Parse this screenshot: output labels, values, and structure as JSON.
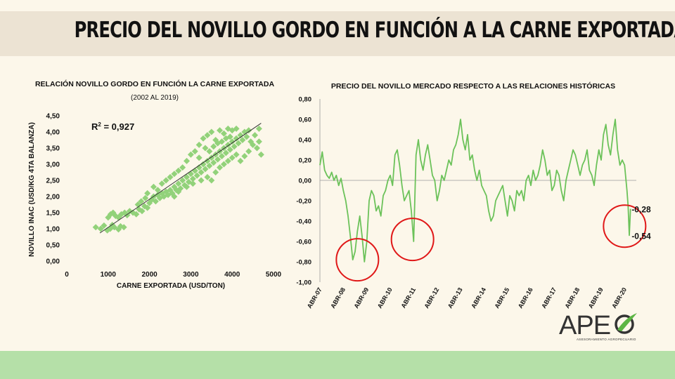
{
  "page": {
    "title": "PRECIO DEL NOVILLO GORDO EN FUNCIÓN A LA CARNE EXPORTADA"
  },
  "logo": {
    "name": "APE",
    "tagline": "ASESORAMIENTO AGROPECUARIO"
  },
  "chart_data": [
    {
      "type": "scatter",
      "title": "RELACIÓN NOVILLO GORDO EN FUNCIÓN LA CARNE EXPORTADA",
      "subtitle": "(2002 AL 2019)",
      "xlabel": "CARNE EXPORTADA (USD/TON)",
      "ylabel": "NOVILLO INAC (USD/KG 4TA BALANZA)",
      "xlim": [
        0,
        5000
      ],
      "ylim": [
        0,
        4.5
      ],
      "x_ticks": [
        0,
        1000,
        2000,
        3000,
        4000,
        5000
      ],
      "x_tick_labels": [
        "0",
        "1000",
        "2000",
        "3000",
        "4000",
        "5000"
      ],
      "y_ticks": [
        0,
        0.5,
        1,
        1.5,
        2,
        2.5,
        3,
        3.5,
        4,
        4.5
      ],
      "y_tick_labels": [
        "0,00",
        "0,50",
        "1,00",
        "1,50",
        "2,00",
        "2,50",
        "3,00",
        "3,50",
        "4,00",
        "4,50"
      ],
      "annotation": "R² = 0,927",
      "trendline": {
        "x": [
          800,
          4700
        ],
        "y": [
          0.87,
          4.27
        ]
      },
      "marker": "diamond",
      "color": "#92d27a",
      "points": [
        [
          700,
          1.05
        ],
        [
          820,
          1.0
        ],
        [
          900,
          1.1
        ],
        [
          980,
          0.95
        ],
        [
          1050,
          1.0
        ],
        [
          1100,
          1.12
        ],
        [
          1150,
          1.05
        ],
        [
          1250,
          0.98
        ],
        [
          1300,
          1.08
        ],
        [
          1380,
          1.05
        ],
        [
          1000,
          1.35
        ],
        [
          1060,
          1.45
        ],
        [
          1120,
          1.5
        ],
        [
          1180,
          1.4
        ],
        [
          1250,
          1.35
        ],
        [
          1320,
          1.45
        ],
        [
          1400,
          1.5
        ],
        [
          1460,
          1.42
        ],
        [
          1520,
          1.55
        ],
        [
          1600,
          1.5
        ],
        [
          1680,
          1.45
        ],
        [
          1750,
          1.6
        ],
        [
          1820,
          1.55
        ],
        [
          1880,
          1.7
        ],
        [
          1950,
          1.65
        ],
        [
          2000,
          1.8
        ],
        [
          1720,
          1.75
        ],
        [
          1800,
          1.85
        ],
        [
          1900,
          1.95
        ],
        [
          2050,
          1.9
        ],
        [
          2100,
          2.0
        ],
        [
          2150,
          1.85
        ],
        [
          2200,
          2.05
        ],
        [
          2250,
          1.95
        ],
        [
          2300,
          2.1
        ],
        [
          2350,
          2.0
        ],
        [
          2400,
          2.15
        ],
        [
          2450,
          2.05
        ],
        [
          2500,
          2.2
        ],
        [
          2550,
          2.1
        ],
        [
          2600,
          2.3
        ],
        [
          2650,
          2.2
        ],
        [
          2700,
          2.4
        ],
        [
          2750,
          2.25
        ],
        [
          2800,
          2.5
        ],
        [
          2850,
          2.35
        ],
        [
          2900,
          2.6
        ],
        [
          2950,
          2.45
        ],
        [
          3000,
          2.7
        ],
        [
          3050,
          2.55
        ],
        [
          3100,
          2.8
        ],
        [
          3150,
          2.65
        ],
        [
          3200,
          2.9
        ],
        [
          3250,
          2.75
        ],
        [
          3300,
          3.0
        ],
        [
          3350,
          2.85
        ],
        [
          3400,
          3.1
        ],
        [
          3450,
          2.95
        ],
        [
          3500,
          3.2
        ],
        [
          3550,
          3.05
        ],
        [
          3600,
          3.3
        ],
        [
          3650,
          3.15
        ],
        [
          3700,
          3.4
        ],
        [
          3750,
          3.25
        ],
        [
          3800,
          3.5
        ],
        [
          3850,
          3.35
        ],
        [
          3900,
          3.6
        ],
        [
          3950,
          3.45
        ],
        [
          4000,
          3.7
        ],
        [
          4050,
          3.55
        ],
        [
          4100,
          3.8
        ],
        [
          4150,
          3.65
        ],
        [
          4200,
          3.9
        ],
        [
          4250,
          3.75
        ],
        [
          4300,
          4.0
        ],
        [
          4350,
          3.85
        ],
        [
          4400,
          4.05
        ],
        [
          4450,
          3.7
        ],
        [
          4550,
          3.9
        ],
        [
          4650,
          4.1
        ],
        [
          3200,
          3.6
        ],
        [
          3300,
          3.8
        ],
        [
          3400,
          3.9
        ],
        [
          3500,
          4.0
        ],
        [
          3600,
          3.75
        ],
        [
          3700,
          4.05
        ],
        [
          3800,
          3.95
        ],
        [
          3900,
          4.1
        ],
        [
          4000,
          4.05
        ],
        [
          4100,
          4.1
        ],
        [
          3400,
          2.6
        ],
        [
          3500,
          2.5
        ],
        [
          3600,
          2.75
        ],
        [
          3700,
          2.9
        ],
        [
          3800,
          3.0
        ],
        [
          3900,
          3.1
        ],
        [
          4000,
          3.2
        ],
        [
          4100,
          3.3
        ],
        [
          4200,
          3.1
        ],
        [
          4300,
          3.25
        ],
        [
          4400,
          3.4
        ],
        [
          4500,
          3.6
        ],
        [
          4600,
          3.5
        ],
        [
          4700,
          3.3
        ],
        [
          4650,
          3.7
        ],
        [
          2800,
          2.9
        ],
        [
          2900,
          3.1
        ],
        [
          3000,
          3.3
        ],
        [
          3100,
          3.4
        ],
        [
          3200,
          3.2
        ],
        [
          2400,
          2.5
        ],
        [
          2500,
          2.6
        ],
        [
          2600,
          2.7
        ],
        [
          2700,
          2.8
        ],
        [
          2300,
          2.4
        ],
        [
          2200,
          2.2
        ],
        [
          2100,
          2.3
        ],
        [
          1950,
          2.1
        ],
        [
          2600,
          2.0
        ],
        [
          2700,
          2.15
        ],
        [
          2900,
          2.3
        ],
        [
          3050,
          2.4
        ],
        [
          3250,
          2.5
        ],
        [
          3350,
          3.5
        ],
        [
          3450,
          3.4
        ],
        [
          3550,
          3.55
        ],
        [
          3650,
          3.65
        ],
        [
          3750,
          3.7
        ],
        [
          3850,
          3.8
        ],
        [
          3950,
          3.85
        ]
      ]
    },
    {
      "type": "line",
      "title": "PRECIO DEL NOVILLO MERCADO RESPECTO A LAS RELACIONES HISTÓRICAS",
      "ylim": [
        -1.0,
        0.8
      ],
      "y_ticks": [
        -1.0,
        -0.8,
        -0.6,
        -0.4,
        -0.2,
        0.0,
        0.2,
        0.4,
        0.6,
        0.8
      ],
      "y_tick_labels": [
        "-1,00",
        "-0,80",
        "-0,60",
        "-0,40",
        "-0,20",
        "0,00",
        "0,20",
        "0,40",
        "0,60",
        "0,80"
      ],
      "categories": [
        "ABR-07",
        "ABR-08",
        "ABR-09",
        "ABR-10",
        "ABR-11",
        "ABR-12",
        "ABR-13",
        "ABR-14",
        "ABR-15",
        "ABR-16",
        "ABR-17",
        "ABR-18",
        "ABR-19",
        "ABR-20"
      ],
      "xlim": [
        2007.0,
        2020.5
      ],
      "color": "#6cc25a",
      "highlight_color": "#e01818",
      "annotations": [
        {
          "label": "-0,28",
          "x": 2020.35,
          "y": -0.28
        },
        {
          "label": "-0,54",
          "x": 2020.35,
          "y": -0.54
        }
      ],
      "highlighted_regions": [
        {
          "x": 2008.6,
          "y": -0.78
        },
        {
          "x": 2010.95,
          "y": -0.58
        },
        {
          "x": 2020.0,
          "y": -0.45
        }
      ],
      "series": [
        {
          "x": [
            2007.0,
            2007.1,
            2007.2,
            2007.3,
            2007.4,
            2007.5,
            2007.6,
            2007.7,
            2007.8,
            2007.9,
            2008.0,
            2008.1,
            2008.2,
            2008.3,
            2008.4,
            2008.5,
            2008.6,
            2008.7,
            2008.8,
            2008.9,
            2009.0,
            2009.1,
            2009.2,
            2009.3,
            2009.4,
            2009.5,
            2009.6,
            2009.7,
            2009.8,
            2009.9,
            2010.0,
            2010.1,
            2010.2,
            2010.3,
            2010.4,
            2010.5,
            2010.6,
            2010.7,
            2010.8,
            2010.9,
            2011.0,
            2011.1,
            2011.2,
            2011.3,
            2011.4,
            2011.5,
            2011.6,
            2011.7,
            2011.8,
            2011.9,
            2012.0,
            2012.1,
            2012.2,
            2012.3,
            2012.4,
            2012.5,
            2012.6,
            2012.7,
            2012.8,
            2012.9,
            2013.0,
            2013.1,
            2013.2,
            2013.3,
            2013.4,
            2013.5,
            2013.6,
            2013.7,
            2013.8,
            2013.9,
            2014.0,
            2014.1,
            2014.2,
            2014.3,
            2014.4,
            2014.5,
            2014.6,
            2014.7,
            2014.8,
            2014.9,
            2015.0,
            2015.1,
            2015.2,
            2015.3,
            2015.4,
            2015.5,
            2015.6,
            2015.7,
            2015.8,
            2015.9,
            2016.0,
            2016.1,
            2016.2,
            2016.3,
            2016.4,
            2016.5,
            2016.6,
            2016.7,
            2016.8,
            2016.9,
            2017.0,
            2017.1,
            2017.2,
            2017.3,
            2017.4,
            2017.5,
            2017.6,
            2017.7,
            2017.8,
            2017.9,
            2018.0,
            2018.1,
            2018.2,
            2018.3,
            2018.4,
            2018.5,
            2018.6,
            2018.7,
            2018.8,
            2018.9,
            2019.0,
            2019.1,
            2019.2,
            2019.3,
            2019.4,
            2019.5,
            2019.6,
            2019.7,
            2019.8,
            2019.9,
            2020.0,
            2020.1,
            2020.15,
            2020.2,
            2020.25
          ],
          "y": [
            0.15,
            0.28,
            0.1,
            0.05,
            0.02,
            0.08,
            0.0,
            0.05,
            -0.05,
            0.02,
            -0.1,
            -0.2,
            -0.35,
            -0.55,
            -0.78,
            -0.7,
            -0.5,
            -0.35,
            -0.55,
            -0.8,
            -0.6,
            -0.2,
            -0.1,
            -0.15,
            -0.3,
            -0.25,
            -0.35,
            -0.15,
            -0.1,
            0.0,
            0.05,
            -0.05,
            0.25,
            0.3,
            0.15,
            -0.05,
            -0.2,
            -0.15,
            -0.1,
            -0.3,
            -0.6,
            0.25,
            0.4,
            0.2,
            0.1,
            0.25,
            0.35,
            0.2,
            0.05,
            0.0,
            -0.2,
            -0.1,
            0.05,
            0.0,
            0.1,
            0.2,
            0.15,
            0.3,
            0.35,
            0.45,
            0.6,
            0.4,
            0.3,
            0.45,
            0.2,
            0.25,
            0.1,
            0.0,
            0.1,
            -0.05,
            -0.1,
            -0.15,
            -0.3,
            -0.4,
            -0.35,
            -0.2,
            -0.15,
            -0.1,
            -0.05,
            -0.2,
            -0.35,
            -0.15,
            -0.2,
            -0.3,
            -0.1,
            -0.15,
            -0.1,
            -0.2,
            0.0,
            0.05,
            -0.05,
            0.1,
            0.0,
            0.05,
            0.15,
            0.3,
            0.2,
            0.05,
            0.1,
            -0.1,
            -0.05,
            0.1,
            0.05,
            -0.1,
            -0.2,
            0.0,
            0.1,
            0.2,
            0.3,
            0.25,
            0.15,
            0.05,
            0.15,
            0.2,
            0.3,
            0.1,
            0.05,
            -0.05,
            0.15,
            0.3,
            0.2,
            0.45,
            0.55,
            0.35,
            0.25,
            0.45,
            0.6,
            0.3,
            0.15,
            0.2,
            0.15,
            -0.1,
            -0.25,
            -0.54,
            -0.28
          ]
        }
      ]
    }
  ]
}
